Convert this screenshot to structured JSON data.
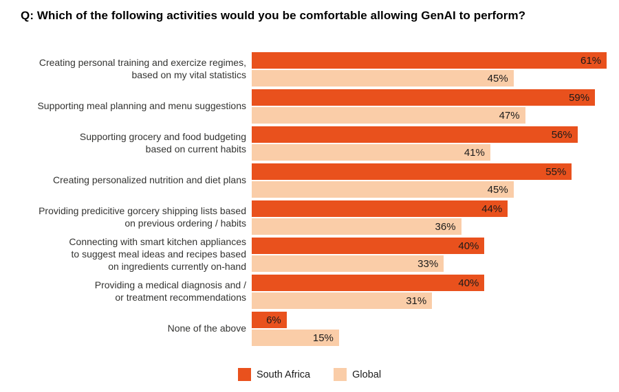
{
  "title": "Q: Which of the following activities would you be comfortable allowing GenAI to perform?",
  "chart_data": {
    "type": "bar",
    "orientation": "horizontal",
    "title": "Q: Which of the following activities would you be comfortable allowing GenAI to perform?",
    "grid": false,
    "value_labels": "inside-end",
    "value_suffix": "%",
    "xlim": [
      0,
      63
    ],
    "legend_position": "bottom-center",
    "categories": [
      "Creating personal training and exercize regimes,\nbased on my vital statistics",
      "Supporting meal planning and menu suggestions",
      "Supporting grocery and food budgeting\nbased on current habits",
      "Creating personalized nutrition and diet plans",
      "Providing predicitive gorcery shipping lists based\non previous ordering / habits",
      "Connecting with smart kitchen appliances\nto suggest meal ideas and recipes based\non ingredients currently on-hand",
      "Providing a medical diagnosis and /\nor treatment recommendations",
      "None of the above"
    ],
    "series": [
      {
        "name": "South Africa",
        "color": "#E9511D",
        "values": [
          61,
          59,
          56,
          55,
          44,
          40,
          40,
          6
        ],
        "display": [
          "61%",
          "59%",
          "56%",
          "55%",
          "44%",
          "40%",
          "40%",
          "6%"
        ]
      },
      {
        "name": "Global",
        "color": "#FACDA8",
        "values": [
          45,
          47,
          41,
          45,
          36,
          33,
          31,
          15
        ],
        "display": [
          "45%",
          "47%",
          "41%",
          "45%",
          "36%",
          "33%",
          "31%",
          "15%"
        ]
      }
    ]
  },
  "legend": {
    "items": [
      {
        "label": "South Africa",
        "color": "#E9511D"
      },
      {
        "label": "Global",
        "color": "#FACDA8"
      }
    ]
  }
}
